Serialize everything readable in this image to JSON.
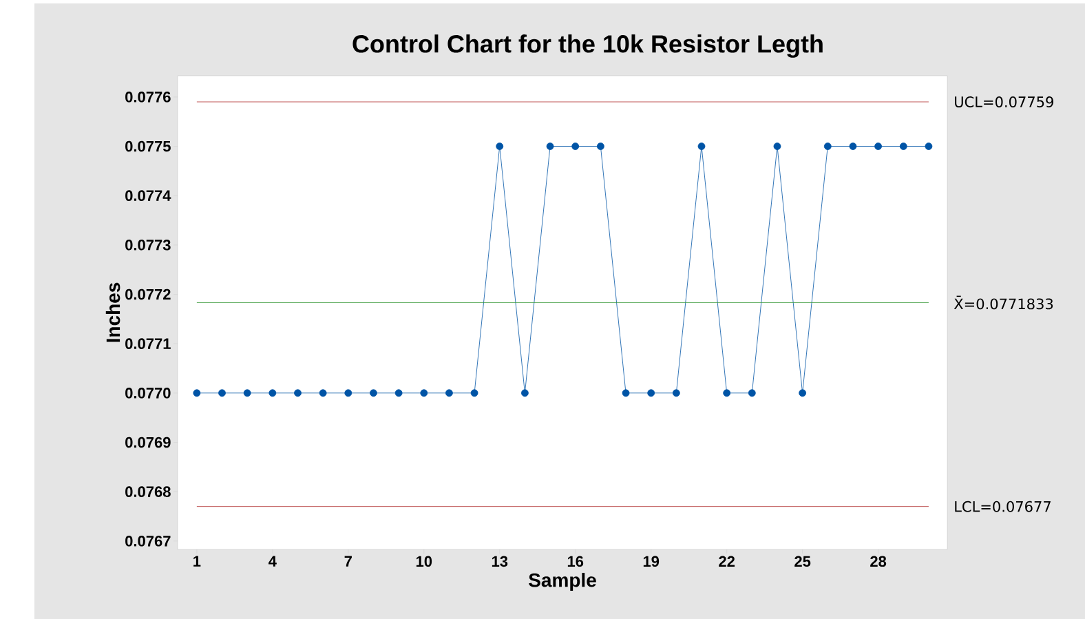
{
  "chart_data": {
    "type": "line",
    "title": "Control Chart for the 10k Resistor Legth",
    "xlabel": "Sample",
    "ylabel": "Inches",
    "x": [
      1,
      2,
      3,
      4,
      5,
      6,
      7,
      8,
      9,
      10,
      11,
      12,
      13,
      14,
      15,
      16,
      17,
      18,
      19,
      20,
      21,
      22,
      23,
      24,
      25,
      26,
      27,
      28,
      29,
      30
    ],
    "series": [
      {
        "color": "#0054a6",
        "values": [
          0.077,
          0.077,
          0.077,
          0.077,
          0.077,
          0.077,
          0.077,
          0.077,
          0.077,
          0.077,
          0.077,
          0.077,
          0.0775,
          0.077,
          0.0775,
          0.0775,
          0.0775,
          0.077,
          0.077,
          0.077,
          0.0775,
          0.077,
          0.077,
          0.0775,
          0.077,
          0.0775,
          0.0775,
          0.0775,
          0.0775,
          0.0775
        ]
      }
    ],
    "xlim": [
      0.24,
      30.74
    ],
    "ylim": [
      0.076683,
      0.077643
    ],
    "xticks": [
      1,
      4,
      7,
      10,
      13,
      16,
      19,
      22,
      25,
      28
    ],
    "yticks": [
      0.0767,
      0.0768,
      0.0769,
      {
        "value": 0.077,
        "label": "0.0770"
      },
      0.0771,
      0.0772,
      0.0773,
      0.0774,
      0.0775,
      0.0776
    ],
    "ref_lines": [
      {
        "axis": "y",
        "value": 0.07759,
        "label": "UCL=0.07759",
        "color": "#b03030"
      },
      {
        "axis": "y",
        "value": 0.0771833,
        "label": "X̄=0.0771833",
        "color": "#3a9a3a"
      },
      {
        "axis": "y",
        "value": 0.07677,
        "label": "LCL=0.07677",
        "color": "#b03030"
      }
    ],
    "marker": "circle",
    "line_style": "solid",
    "grid": false
  }
}
